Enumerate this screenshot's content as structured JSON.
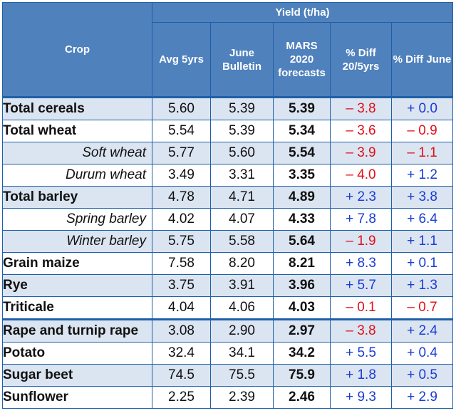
{
  "header": {
    "crop": "Crop",
    "group": "Yield (t/ha)",
    "avg": "Avg 5yrs",
    "june": "June Bulletin",
    "mars": "MARS 2020 forecasts",
    "diff_avg": "% Diff 20/5yrs",
    "diff_june": "% Diff June"
  },
  "rows": [
    {
      "crop": "Total cereals",
      "avg": "5.60",
      "june": "5.39",
      "mars": "5.39",
      "d1": "– 3.8",
      "d2": "+ 0.0"
    },
    {
      "crop": "Total wheat",
      "avg": "5.54",
      "june": "5.39",
      "mars": "5.34",
      "d1": "– 3.6",
      "d2": "– 0.9"
    },
    {
      "crop": "Soft wheat",
      "avg": "5.77",
      "june": "5.60",
      "mars": "5.54",
      "d1": "– 3.9",
      "d2": "– 1.1"
    },
    {
      "crop": "Durum wheat",
      "avg": "3.49",
      "june": "3.31",
      "mars": "3.35",
      "d1": "– 4.0",
      "d2": "+ 1.2"
    },
    {
      "crop": "Total barley",
      "avg": "4.78",
      "june": "4.71",
      "mars": "4.89",
      "d1": "+ 2.3",
      "d2": "+ 3.8"
    },
    {
      "crop": "Spring barley",
      "avg": "4.02",
      "june": "4.07",
      "mars": "4.33",
      "d1": "+ 7.8",
      "d2": "+ 6.4"
    },
    {
      "crop": "Winter barley",
      "avg": "5.75",
      "june": "5.58",
      "mars": "5.64",
      "d1": "– 1.9",
      "d2": "+ 1.1"
    },
    {
      "crop": "Grain maize",
      "avg": "7.58",
      "june": "8.20",
      "mars": "8.21",
      "d1": "+ 8.3",
      "d2": "+ 0.1"
    },
    {
      "crop": "Rye",
      "avg": "3.75",
      "june": "3.91",
      "mars": "3.96",
      "d1": "+ 5.7",
      "d2": "+ 1.3"
    },
    {
      "crop": "Triticale",
      "avg": "4.04",
      "june": "4.06",
      "mars": "4.03",
      "d1": "– 0.1",
      "d2": "– 0.7"
    },
    {
      "crop": "Rape and turnip rape",
      "avg": "3.08",
      "june": "2.90",
      "mars": "2.97",
      "d1": "– 3.8",
      "d2": "+ 2.4"
    },
    {
      "crop": "Potato",
      "avg": "32.4",
      "june": "34.1",
      "mars": "34.2",
      "d1": "+ 5.5",
      "d2": "+ 0.4"
    },
    {
      "crop": "Sugar beet",
      "avg": "74.5",
      "june": "75.5",
      "mars": "75.9",
      "d1": "+ 1.8",
      "d2": "+ 0.5"
    },
    {
      "crop": "Sunflower",
      "avg": "2.25",
      "june": "2.39",
      "mars": "2.46",
      "d1": "+ 9.3",
      "d2": "+ 2.9"
    }
  ],
  "colors": {
    "negative": "#e0101a",
    "positive": "#1a3cd6",
    "header": "#4f81bd",
    "shade": "#dbe4f1"
  }
}
